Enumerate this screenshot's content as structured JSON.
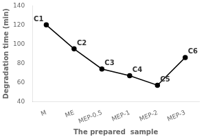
{
  "chart_data": {
    "type": "line",
    "xlabel": "The prepared  sample",
    "ylabel": "Degradation time (min)",
    "categories": [
      "M",
      "ME",
      "MEP-0.5",
      "MEP-1",
      "MEP-2",
      "MEP-3"
    ],
    "values": [
      120,
      95,
      74,
      67,
      57,
      86
    ],
    "annotations": [
      "C1",
      "C2",
      "C3",
      "C4",
      "C5",
      "C6"
    ],
    "color": "#000000",
    "marker": "circle",
    "ylim": [
      40,
      140
    ],
    "yticks": [
      40,
      60,
      80,
      100,
      120,
      140
    ],
    "grid": false
  }
}
